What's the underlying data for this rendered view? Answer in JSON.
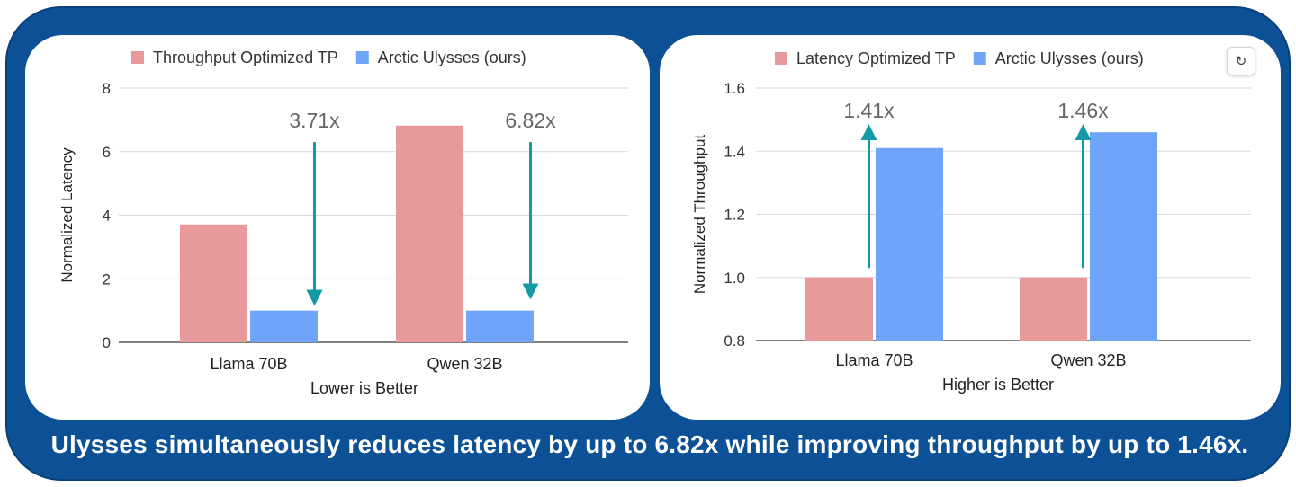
{
  "caption": "Ulysses simultaneously reduces latency by up to 6.82x while improving throughput by up to 1.46x.",
  "refresh_icon": "refresh-icon",
  "colors": {
    "frame": "#0c5196",
    "baseline_bar": "#e8999a",
    "ours_bar": "#6fa5f8",
    "arrow": "#1599a4",
    "annotation": "#666666"
  },
  "chart_data": [
    {
      "type": "bar",
      "categories": [
        "Llama 70B",
        "Qwen 32B"
      ],
      "series": [
        {
          "name": "Throughput Optimized TP",
          "values": [
            3.71,
            6.82
          ]
        },
        {
          "name": "Arctic Ulysses (ours)",
          "values": [
            1.0,
            1.0
          ]
        }
      ],
      "xlabel": "Lower is Better",
      "ylabel": "Normalized Latency",
      "ylim": [
        0,
        8
      ],
      "yticks": [
        "0",
        "2",
        "4",
        "6",
        "8"
      ],
      "grid": true,
      "legend": "top",
      "annotations": [
        {
          "category": "Llama 70B",
          "text": "3.71x",
          "direction": "down",
          "from": 6.3,
          "to": 1.4
        },
        {
          "category": "Qwen 32B",
          "text": "6.82x",
          "direction": "down",
          "from": 6.3,
          "to": 1.6
        }
      ]
    },
    {
      "type": "bar",
      "categories": [
        "Llama 70B",
        "Qwen 32B"
      ],
      "series": [
        {
          "name": "Latency Optimized TP",
          "values": [
            1.0,
            1.0
          ]
        },
        {
          "name": "Arctic Ulysses (ours)",
          "values": [
            1.41,
            1.46
          ]
        }
      ],
      "xlabel": "Higher is Better",
      "ylabel": "Normalized Throughput",
      "ylim": [
        0.8,
        1.6
      ],
      "yticks": [
        "0.8",
        "1.0",
        "1.2",
        "1.4",
        "1.6"
      ],
      "grid": true,
      "legend": "top",
      "annotations": [
        {
          "category": "Llama 70B",
          "text": "1.41x",
          "direction": "up",
          "from": 1.03,
          "to": 1.46
        },
        {
          "category": "Qwen 32B",
          "text": "1.46x",
          "direction": "up",
          "from": 1.03,
          "to": 1.46
        }
      ]
    }
  ]
}
